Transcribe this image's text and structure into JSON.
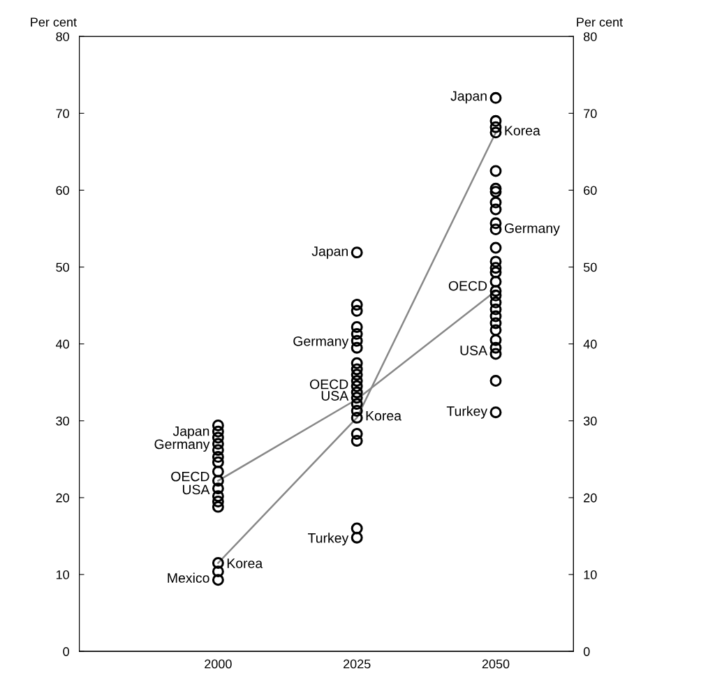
{
  "chart_data": {
    "type": "scatter",
    "ylabel": "Per cent",
    "y2label": "Per cent",
    "xlim": [
      1975,
      2064
    ],
    "xticks": [
      2000,
      2025,
      2050
    ],
    "ylim": [
      0,
      80
    ],
    "yticks": [
      0,
      10,
      20,
      30,
      40,
      50,
      60,
      70,
      80
    ],
    "y2lim": [
      0,
      80
    ],
    "y2ticks": [
      0,
      10,
      20,
      30,
      40,
      50,
      60,
      70,
      80
    ],
    "grid": false,
    "legend": false,
    "series": [
      {
        "marker": "circle",
        "color": "#000000",
        "x": [
          2000,
          2000,
          2000,
          2000,
          2000,
          2000,
          2000,
          2000,
          2000,
          2000,
          2000,
          2000,
          2000,
          2000,
          2000,
          2000
        ],
        "values": [
          29.4,
          28.6,
          27.8,
          27.0,
          26.2,
          25.3,
          24.6,
          23.4,
          22.2,
          21.2,
          20.2,
          19.5,
          18.8,
          11.5,
          10.4,
          9.3
        ]
      },
      {
        "marker": "circle",
        "color": "#000000",
        "x": [
          2025,
          2025,
          2025,
          2025,
          2025,
          2025,
          2025,
          2025,
          2025,
          2025,
          2025,
          2025,
          2025,
          2025,
          2025,
          2025,
          2025,
          2025,
          2025,
          2025,
          2025
        ],
        "values": [
          51.9,
          45.1,
          44.3,
          42.2,
          41.3,
          40.4,
          39.5,
          37.5,
          36.7,
          36.0,
          35.2,
          34.5,
          33.7,
          33.0,
          32.2,
          31.3,
          30.4,
          28.3,
          27.4,
          16.0,
          14.8
        ]
      },
      {
        "marker": "circle",
        "color": "#000000",
        "x": [
          2050,
          2050,
          2050,
          2050,
          2050,
          2050,
          2050,
          2050,
          2050,
          2050,
          2050,
          2050,
          2050,
          2050,
          2050,
          2050,
          2050,
          2050,
          2050,
          2050,
          2050,
          2050,
          2050,
          2050,
          2050,
          2050,
          2050,
          2050
        ],
        "values": [
          72.0,
          69.0,
          68.2,
          67.5,
          62.5,
          60.2,
          59.8,
          58.4,
          57.5,
          55.7,
          54.9,
          52.5,
          50.7,
          49.9,
          49.3,
          48.1,
          46.9,
          46.3,
          45.4,
          44.5,
          43.6,
          42.7,
          41.8,
          40.5,
          39.5,
          38.7,
          35.2,
          31.1
        ]
      },
      {
        "type": "line",
        "marker": "none",
        "color": "#888888",
        "x": [
          2000,
          2025,
          2050
        ],
        "values": [
          22.2,
          32.8,
          46.9
        ]
      },
      {
        "type": "line",
        "marker": "none",
        "color": "#888888",
        "x": [
          2000,
          2025,
          2050
        ],
        "values": [
          11.5,
          30.4,
          67.5
        ]
      }
    ],
    "annotations": [
      {
        "text": "Japan",
        "x": 1998.5,
        "y": 28.5
      },
      {
        "text": "Germany",
        "x": 1998.5,
        "y": 26.8
      },
      {
        "text": "OECD",
        "x": 1998.5,
        "y": 22.6
      },
      {
        "text": "USA",
        "x": 1998.5,
        "y": 20.9
      },
      {
        "text": "Korea",
        "x": 2001.5,
        "y": 11.3
      },
      {
        "text": "Mexico",
        "x": 1998.5,
        "y": 9.4
      },
      {
        "text": "Japan",
        "x": 2023.5,
        "y": 51.9
      },
      {
        "text": "Germany",
        "x": 2023.5,
        "y": 40.2
      },
      {
        "text": "OECD",
        "x": 2023.5,
        "y": 34.6
      },
      {
        "text": "USA",
        "x": 2023.5,
        "y": 33.1
      },
      {
        "text": "Korea",
        "x": 2026.5,
        "y": 30.5
      },
      {
        "text": "Turkey",
        "x": 2023.5,
        "y": 14.6
      },
      {
        "text": "Japan",
        "x": 2048.5,
        "y": 72.1
      },
      {
        "text": "Korea",
        "x": 2051.5,
        "y": 67.6
      },
      {
        "text": "Germany",
        "x": 2051.5,
        "y": 54.9
      },
      {
        "text": "OECD",
        "x": 2048.5,
        "y": 47.4
      },
      {
        "text": "USA",
        "x": 2048.5,
        "y": 39.0
      },
      {
        "text": "Turkey",
        "x": 2048.5,
        "y": 31.1
      }
    ]
  }
}
